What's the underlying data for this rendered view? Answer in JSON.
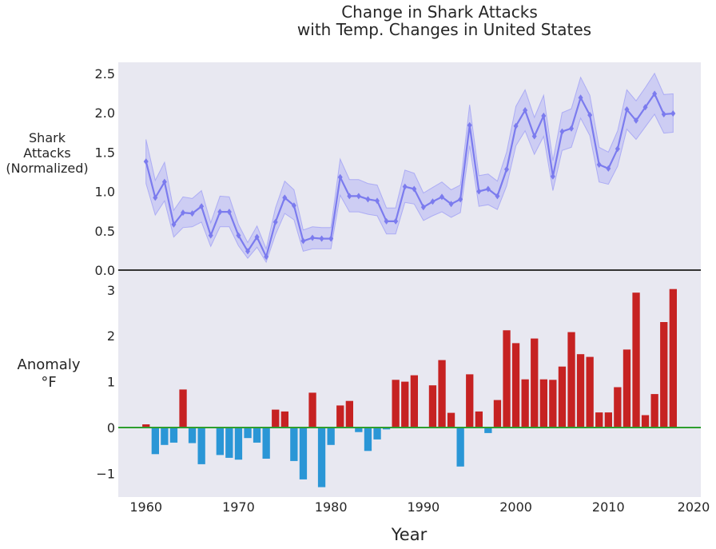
{
  "chart_data": [
    {
      "type": "line",
      "title_line1": "Change in Shark Attacks",
      "title_line2": "with Temp. Changes in United States",
      "ylabel_lines": [
        "Shark",
        "Attacks",
        "(Normalized)"
      ],
      "ylim": [
        0,
        2.65
      ],
      "yticks": [
        0.0,
        0.5,
        1.0,
        1.5,
        2.0,
        2.5
      ],
      "ytick_labels": [
        "0.0",
        "0.5",
        "1.0",
        "1.5",
        "2.0",
        "2.5"
      ],
      "line_color": "#7b7bee",
      "band_color": "#9a9af5",
      "background": "#e8e8f1",
      "x": [
        1960,
        1961,
        1962,
        1963,
        1964,
        1965,
        1966,
        1967,
        1968,
        1969,
        1970,
        1971,
        1972,
        1973,
        1974,
        1975,
        1976,
        1977,
        1978,
        1979,
        1980,
        1981,
        1982,
        1983,
        1984,
        1985,
        1986,
        1987,
        1988,
        1989,
        1990,
        1991,
        1992,
        1993,
        1994,
        1995,
        1996,
        1997,
        1998,
        1999,
        2000,
        2001,
        2002,
        2003,
        2004,
        2005,
        2006,
        2007,
        2008,
        2009,
        2010,
        2011,
        2012,
        2013,
        2014,
        2015,
        2016,
        2017
      ],
      "series": [
        {
          "values": [
            1.38,
            0.92,
            1.12,
            0.58,
            0.73,
            0.72,
            0.81,
            0.44,
            0.74,
            0.74,
            0.44,
            0.24,
            0.42,
            0.17,
            0.61,
            0.92,
            0.82,
            0.37,
            0.41,
            0.4,
            0.4,
            1.18,
            0.94,
            0.94,
            0.9,
            0.88,
            0.62,
            0.62,
            1.06,
            1.03,
            0.8,
            0.87,
            0.93,
            0.84,
            0.9,
            1.84,
            1.0,
            1.03,
            0.94,
            1.28,
            1.83,
            2.03,
            1.7,
            1.96,
            1.19,
            1.76,
            1.8,
            2.19,
            1.97,
            1.34,
            1.29,
            1.54,
            2.04,
            1.9,
            2.07,
            2.24,
            1.98,
            1.99
          ],
          "lower": [
            1.1,
            0.7,
            0.88,
            0.42,
            0.54,
            0.55,
            0.61,
            0.3,
            0.55,
            0.55,
            0.31,
            0.15,
            0.29,
            0.1,
            0.45,
            0.72,
            0.64,
            0.24,
            0.27,
            0.27,
            0.27,
            0.95,
            0.74,
            0.74,
            0.71,
            0.69,
            0.46,
            0.46,
            0.86,
            0.84,
            0.63,
            0.69,
            0.74,
            0.67,
            0.73,
            1.58,
            0.81,
            0.83,
            0.77,
            1.07,
            1.58,
            1.77,
            1.47,
            1.7,
            1.01,
            1.52,
            1.56,
            1.93,
            1.71,
            1.12,
            1.09,
            1.32,
            1.79,
            1.66,
            1.82,
            1.98,
            1.74,
            1.75
          ],
          "upper": [
            1.66,
            1.14,
            1.37,
            0.76,
            0.93,
            0.91,
            1.01,
            0.6,
            0.94,
            0.93,
            0.58,
            0.35,
            0.56,
            0.27,
            0.79,
            1.13,
            1.02,
            0.51,
            0.55,
            0.54,
            0.54,
            1.41,
            1.15,
            1.15,
            1.1,
            1.08,
            0.79,
            0.79,
            1.27,
            1.23,
            0.98,
            1.05,
            1.12,
            1.02,
            1.08,
            2.1,
            1.2,
            1.22,
            1.13,
            1.5,
            2.08,
            2.29,
            1.94,
            2.22,
            1.39,
            2.0,
            2.05,
            2.45,
            2.22,
            1.56,
            1.5,
            1.77,
            2.29,
            2.15,
            2.32,
            2.5,
            2.23,
            2.24
          ]
        }
      ]
    },
    {
      "type": "bar",
      "ylabel_lines": [
        "Anomaly",
        "°F"
      ],
      "xlabel": "Year",
      "xlim": [
        1957,
        2020
      ],
      "xticks": [
        1960,
        1970,
        1980,
        1990,
        2000,
        2010,
        2020
      ],
      "xtick_labels": [
        "1960",
        "1970",
        "1980",
        "1990",
        "2000",
        "2010",
        "2020"
      ],
      "ylim": [
        -1.5,
        3.25
      ],
      "yticks": [
        -1,
        0,
        1,
        2,
        3
      ],
      "ytick_labels": [
        "−1",
        "0",
        "1",
        "2",
        "3"
      ],
      "positive_color": "#c62222",
      "negative_color": "#2a96d6",
      "zero_line_color": "#2e9e2e",
      "background": "#e8e8f1",
      "x": [
        1960,
        1961,
        1962,
        1963,
        1964,
        1965,
        1966,
        1967,
        1968,
        1969,
        1970,
        1971,
        1972,
        1973,
        1974,
        1975,
        1976,
        1977,
        1978,
        1979,
        1980,
        1981,
        1982,
        1983,
        1984,
        1985,
        1986,
        1987,
        1988,
        1989,
        1990,
        1991,
        1992,
        1993,
        1994,
        1995,
        1996,
        1997,
        1998,
        1999,
        2000,
        2001,
        2002,
        2003,
        2004,
        2005,
        2006,
        2007,
        2008,
        2009,
        2010,
        2011,
        2012,
        2013,
        2014,
        2015,
        2016,
        2017
      ],
      "values": [
        0.07,
        -0.58,
        -0.38,
        -0.33,
        0.83,
        -0.34,
        -0.8,
        0.0,
        -0.6,
        -0.66,
        -0.7,
        -0.23,
        -0.33,
        -0.68,
        0.39,
        0.35,
        -0.73,
        -1.13,
        0.76,
        -1.3,
        -0.38,
        0.48,
        0.58,
        -0.1,
        -0.51,
        -0.26,
        -0.04,
        1.04,
        1.0,
        1.14,
        0.0,
        0.92,
        1.47,
        0.32,
        -0.85,
        1.16,
        0.35,
        -0.12,
        0.6,
        2.12,
        1.84,
        1.05,
        1.94,
        1.05,
        1.04,
        1.33,
        2.08,
        1.6,
        1.54,
        0.33,
        0.33,
        0.88,
        1.7,
        2.94,
        0.27,
        0.73,
        2.3,
        3.02
      ]
    }
  ]
}
